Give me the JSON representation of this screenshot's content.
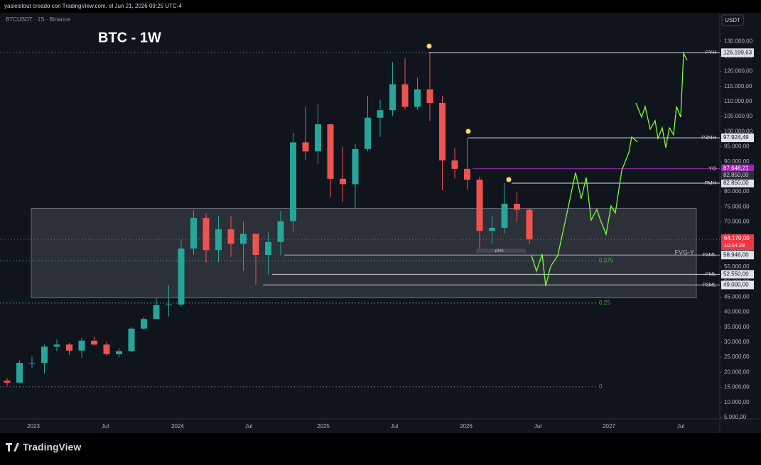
{
  "header": {
    "credit": "yasielstout creado con TradingView.com, el Jun 21, 2026 09:25 UTC-4",
    "symbol": "BTCUSDT · 1S · Binance",
    "title": "BTC - 1W",
    "currency": "USDT",
    "brand": "TradingView"
  },
  "price_axis": {
    "ylim": [
      4500,
      139000
    ],
    "yticks": [
      {
        "value": 5000,
        "label": "5.000,00"
      },
      {
        "value": 10000,
        "label": "10.000,00"
      },
      {
        "value": 15000,
        "label": "15.000,00"
      },
      {
        "value": 20000,
        "label": "20.000,00"
      },
      {
        "value": 25000,
        "label": "25.000,00"
      },
      {
        "value": 30000,
        "label": "30.000,00"
      },
      {
        "value": 35000,
        "label": "35.000,00"
      },
      {
        "value": 40000,
        "label": "40.000,00"
      },
      {
        "value": 45000,
        "label": "45.000,00"
      },
      {
        "value": 50000,
        "label": "50.000,00"
      },
      {
        "value": 55000,
        "label": "55.000,00"
      },
      {
        "value": 60000,
        "label": "60.000,00"
      },
      {
        "value": 65000,
        "label": "65.000,00"
      },
      {
        "value": 70000,
        "label": "70.000,00"
      },
      {
        "value": 75000,
        "label": "75.000,00"
      },
      {
        "value": 80000,
        "label": "80.000,00"
      },
      {
        "value": 85000,
        "label": "85.000,00"
      },
      {
        "value": 90000,
        "label": "90.000,00"
      },
      {
        "value": 95000,
        "label": "95.000,00"
      },
      {
        "value": 100000,
        "label": "100.000,00"
      },
      {
        "value": 105000,
        "label": "105.000,00"
      },
      {
        "value": 110000,
        "label": "110.000,00"
      },
      {
        "value": 115000,
        "label": "115.000,00"
      },
      {
        "value": 120000,
        "label": "120.000,00"
      },
      {
        "value": 125000,
        "label": "125.000,00"
      },
      {
        "value": 130000,
        "label": "130.000,00"
      }
    ]
  },
  "time_axis": [
    "2023",
    "Jul",
    "2024",
    "Jul",
    "2025",
    "Jul",
    "2026",
    "Jul",
    "2027",
    "Jul"
  ],
  "candles": {
    "open": [
      17200,
      16500,
      23100,
      23100,
      28500,
      29200,
      27200,
      30500,
      29200,
      26000,
      27000,
      34500,
      37700,
      42300,
      42500,
      61100,
      71300,
      60600,
      67500,
      62700,
      66000,
      59000,
      63300,
      70200,
      96400,
      93400,
      102400,
      84300,
      82500,
      94200,
      104600,
      107100,
      115700,
      108200,
      114000,
      109500,
      90400,
      87600,
      84000,
      67000,
      68000,
      76000,
      74000
    ],
    "high": [
      18000,
      23900,
      25200,
      29200,
      31000,
      29800,
      31400,
      31800,
      30000,
      28000,
      35000,
      38400,
      44700,
      48900,
      64000,
      73800,
      72800,
      71900,
      72000,
      70000,
      65100,
      66500,
      73600,
      99600,
      108300,
      109100,
      102700,
      95000,
      95800,
      111900,
      110500,
      123100,
      124400,
      117900,
      126200,
      111900,
      94600,
      97900,
      85000,
      72000,
      82850,
      80000,
      74500
    ],
    "low": [
      15500,
      16500,
      21400,
      19600,
      26900,
      25800,
      24800,
      28900,
      25400,
      24900,
      26600,
      34100,
      37600,
      38500,
      41800,
      59100,
      56500,
      56600,
      58400,
      53700,
      49000,
      52500,
      58900,
      66800,
      90500,
      89200,
      78200,
      76600,
      74500,
      93400,
      98200,
      105300,
      107300,
      107200,
      103500,
      80500,
      84400,
      80600,
      60000,
      62500,
      66000,
      70000,
      62500
    ],
    "close": [
      16500,
      23100,
      23100,
      28500,
      29200,
      27200,
      30500,
      29200,
      26000,
      27000,
      34500,
      37700,
      42300,
      42500,
      61100,
      71300,
      60600,
      67500,
      62700,
      66000,
      59000,
      63300,
      70200,
      96400,
      93400,
      102400,
      84300,
      82500,
      94200,
      104600,
      107100,
      115700,
      108200,
      114000,
      109500,
      90400,
      87600,
      84000,
      67000,
      68000,
      76000,
      74000,
      64170
    ]
  },
  "levels": [
    {
      "name": "PYH",
      "value": 126199.63,
      "price_label": "126.199,63"
    },
    {
      "name": "P3MH",
      "value": 97924.49,
      "price_label": "97.924,49"
    },
    {
      "name": "YO",
      "value": 87648.21,
      "price_label": "87.648,21"
    },
    {
      "name": "PMH",
      "value": 82850,
      "price_label": "82.850,00"
    },
    {
      "name": "P3ML",
      "value": 58946,
      "price_label": "58.946,00"
    },
    {
      "name": "PML",
      "value": 52550,
      "price_label": "52.550,00"
    },
    {
      "name": "P3ML",
      "value": 49000,
      "price_label": "49.000,00"
    }
  ],
  "extra_price": {
    "value": 82850,
    "label": "82.850,00"
  },
  "fib": [
    {
      "label": "0,375",
      "value": 56970
    },
    {
      "label": "0,25",
      "value": 43000
    },
    {
      "label": "0",
      "value": 15150
    }
  ],
  "zone": {
    "label": "FVG-Y",
    "top": 74500,
    "bottom": 44700
  },
  "last_price": {
    "value": 64170,
    "label": "64.170,00",
    "countdown": "10:34:28"
  },
  "minor_label": "p3mL"
}
